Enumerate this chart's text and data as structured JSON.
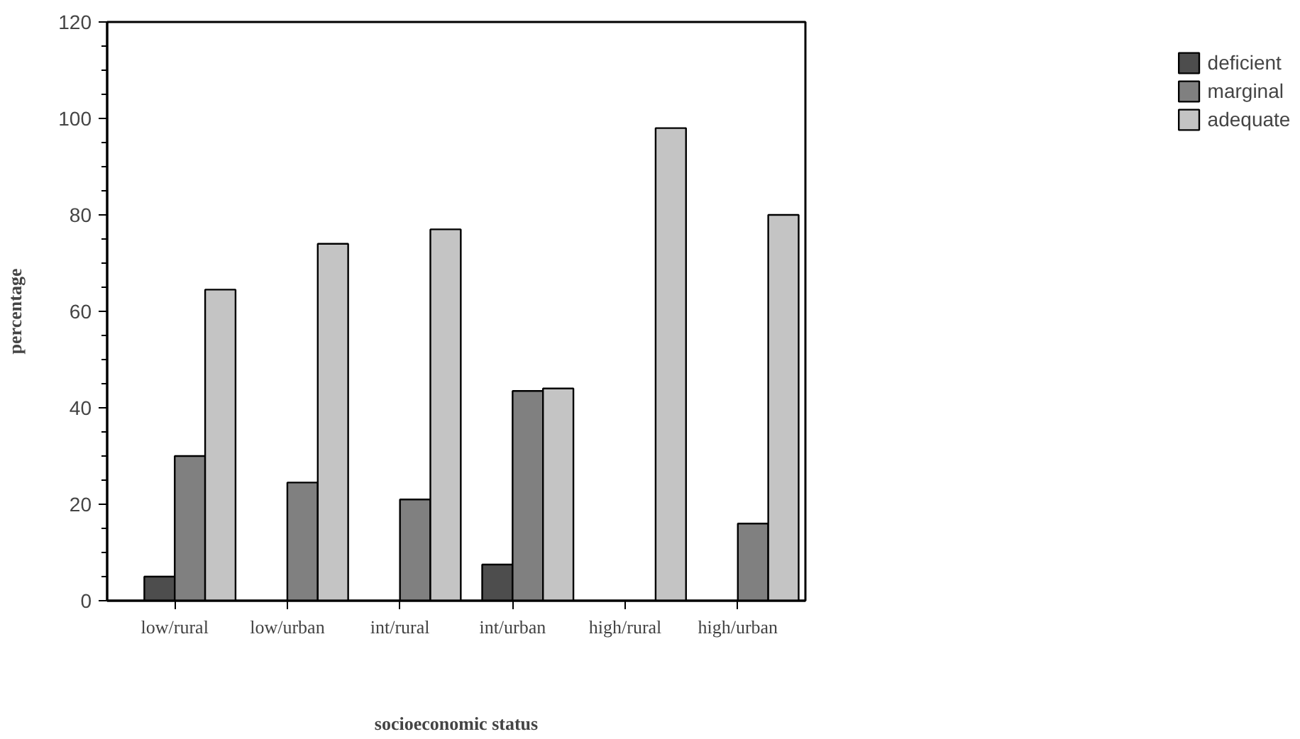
{
  "chart_data": {
    "type": "bar",
    "xlabel": "socioeconomic status",
    "ylabel": "percentage",
    "categories": [
      "low/rural",
      "low/urban",
      "int/rural",
      "int/urban",
      "high/rural",
      "high/urban"
    ],
    "series": [
      {
        "name": "deficient",
        "color": "#4d4d4d",
        "values": [
          5,
          null,
          null,
          7.5,
          null,
          null
        ]
      },
      {
        "name": "marginal",
        "color": "#808080",
        "values": [
          30,
          24.5,
          21,
          43.5,
          null,
          16
        ]
      },
      {
        "name": "adequate",
        "color": "#c4c4c4",
        "values": [
          64.5,
          74,
          77,
          44,
          98,
          80
        ]
      }
    ],
    "ylim": [
      0,
      120
    ],
    "yticks": [
      0,
      20,
      40,
      60,
      80,
      100,
      120
    ],
    "grid": false,
    "legend": "top right"
  }
}
